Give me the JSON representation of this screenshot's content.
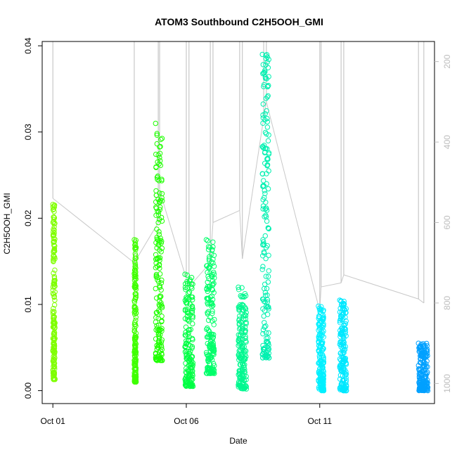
{
  "chart_data": {
    "type": "scatter",
    "title": "ATOM3 Southbound C2H5OOH_GMI",
    "xlabel": "Date",
    "ylabel": "C2H5OOH_GMI",
    "x_unit": "days since Oct 01",
    "xlim": [
      -0.4,
      14.3
    ],
    "ylim": [
      -0.0015,
      0.0405
    ],
    "y_ticks": [
      0.0,
      0.01,
      0.02,
      0.03,
      0.04
    ],
    "y_tick_labels": [
      "0.00",
      "0.01",
      "0.02",
      "0.03",
      "0.04"
    ],
    "x_ticks": [
      0,
      5,
      10
    ],
    "x_tick_labels": [
      "Oct 01",
      "Oct 06",
      "Oct 11"
    ],
    "y2_ylim": [
      1050,
      150
    ],
    "y2_ticks": [
      200,
      400,
      600,
      800,
      1000
    ],
    "y2_tick_labels": [
      "200",
      "400",
      "600",
      "800",
      "1000"
    ],
    "grid": false,
    "legend": "none",
    "series": [
      {
        "x_start": 0.0,
        "x_end": 0.08,
        "y_min": 0.0013,
        "y_max": 0.0216,
        "color": "#7fff00"
      },
      {
        "x_start": 3.05,
        "x_end": 3.12,
        "y_min": 0.001,
        "y_max": 0.0175,
        "color": "#3fff00"
      },
      {
        "x_start": 3.85,
        "x_end": 4.1,
        "y_min": 0.0035,
        "y_max": 0.031,
        "color": "#1fff00"
      },
      {
        "x_start": 4.95,
        "x_end": 5.25,
        "y_min": 0.0005,
        "y_max": 0.0135,
        "color": "#00ff44"
      },
      {
        "x_start": 5.75,
        "x_end": 6.05,
        "y_min": 0.002,
        "y_max": 0.0175,
        "color": "#00ff6a"
      },
      {
        "x_start": 6.95,
        "x_end": 7.25,
        "y_min": 0.0002,
        "y_max": 0.012,
        "color": "#00f890"
      },
      {
        "x_start": 7.85,
        "x_end": 8.1,
        "y_min": 0.0038,
        "y_max": 0.039,
        "color": "#00f0b0"
      },
      {
        "x_start": 9.95,
        "x_end": 10.15,
        "y_min": 0.0,
        "y_max": 0.0098,
        "color": "#00f0ff"
      },
      {
        "x_start": 10.75,
        "x_end": 11.0,
        "y_min": 0.0,
        "y_max": 0.0105,
        "color": "#00e8ff"
      },
      {
        "x_start": 13.7,
        "x_end": 14.05,
        "y_min": 0.0,
        "y_max": 0.0055,
        "color": "#00a0ff"
      }
    ],
    "pressure_trace_color": "#c8c8c8",
    "pressure_trace": {
      "note": "secondary axis (right), inverted pressure; grey vertical flight profiles",
      "profiles": [
        {
          "x": 0.0,
          "p_top": 150,
          "p_bottom": 540
        },
        {
          "x": 3.05,
          "p_top": 150,
          "p_bottom": 700
        },
        {
          "x": 3.95,
          "p_top": 150,
          "p_bottom": 600
        },
        {
          "x": 4.0,
          "p_top": 150,
          "p_bottom": 520
        },
        {
          "x": 5.0,
          "p_top": 150,
          "p_bottom": 740
        },
        {
          "x": 5.1,
          "p_top": 150,
          "p_bottom": 760
        },
        {
          "x": 5.9,
          "p_top": 150,
          "p_bottom": 700
        },
        {
          "x": 6.0,
          "p_top": 150,
          "p_bottom": 600
        },
        {
          "x": 7.0,
          "p_top": 150,
          "p_bottom": 570
        },
        {
          "x": 7.1,
          "p_top": 150,
          "p_bottom": 690
        },
        {
          "x": 7.9,
          "p_top": 150,
          "p_bottom": 340
        },
        {
          "x": 8.0,
          "p_top": 150,
          "p_bottom": 300
        },
        {
          "x": 10.0,
          "p_top": 150,
          "p_bottom": 820
        },
        {
          "x": 10.05,
          "p_top": 150,
          "p_bottom": 760
        },
        {
          "x": 10.8,
          "p_top": 150,
          "p_bottom": 750
        },
        {
          "x": 10.9,
          "p_top": 150,
          "p_bottom": 730
        },
        {
          "x": 13.7,
          "p_top": 150,
          "p_bottom": 790
        },
        {
          "x": 13.9,
          "p_top": 150,
          "p_bottom": 800
        }
      ]
    }
  }
}
